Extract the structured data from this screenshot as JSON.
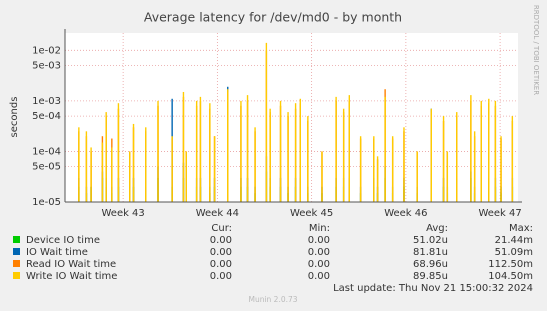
{
  "chart_data": {
    "type": "spike",
    "title": "Average latency for /dev/md0 - by month",
    "y_label": "seconds",
    "side_text": "RRDTOOL / TOBI OETIKER",
    "log_y": true,
    "grid": true,
    "ylim": [
      1e-05,
      0.022
    ],
    "yticks": [
      {
        "value": 1e-05,
        "label": "1e-05"
      },
      {
        "value": 5e-05,
        "label": "5e-05"
      },
      {
        "value": 0.0001,
        "label": "1e-04"
      },
      {
        "value": 0.0005,
        "label": "5e-04"
      },
      {
        "value": 0.001,
        "label": "1e-03"
      },
      {
        "value": 0.005,
        "label": "5e-03"
      },
      {
        "value": 0.01,
        "label": "1e-02"
      }
    ],
    "xlim": [
      42.383,
      47.19
    ],
    "xticks": [
      {
        "value": 43,
        "label": "Week 43"
      },
      {
        "value": 44,
        "label": "Week 44"
      },
      {
        "value": 45,
        "label": "Week 45"
      },
      {
        "value": 46,
        "label": "Week 46"
      },
      {
        "value": 47,
        "label": "Week 47"
      }
    ],
    "x": [
      42.53,
      42.61,
      42.66,
      42.78,
      42.82,
      42.88,
      42.95,
      43.07,
      43.11,
      43.24,
      43.37,
      43.52,
      43.64,
      43.67,
      43.78,
      43.82,
      43.92,
      43.97,
      44.11,
      44.25,
      44.32,
      44.4,
      44.52,
      44.56,
      44.67,
      44.75,
      44.83,
      44.88,
      44.96,
      45.11,
      45.26,
      45.34,
      45.4,
      45.52,
      45.66,
      45.7,
      45.78,
      45.86,
      45.98,
      46.12,
      46.27,
      46.4,
      46.44,
      46.54,
      46.69,
      46.73,
      46.8,
      46.88,
      46.95,
      47.01,
      47.13
    ],
    "legend_headers": [
      "Cur:",
      "Min:",
      "Avg:",
      "Max:"
    ],
    "series": [
      {
        "name": "Device IO time",
        "color": "#00cc00",
        "cur": "0.00",
        "min": "0.00",
        "avg": "51.02u",
        "max": "21.44m",
        "values": [
          2e-05,
          1.5e-05,
          2e-05,
          3e-05,
          2e-05,
          1.5e-05,
          2e-05,
          1.5e-05,
          2e-05,
          1.5e-05,
          3e-05,
          2e-05,
          3e-05,
          1.5e-05,
          2e-05,
          2e-05,
          1.5e-05,
          2e-05,
          3e-05,
          2e-05,
          2e-05,
          1.5e-05,
          4e-05,
          2e-05,
          2e-05,
          1.5e-05,
          2e-05,
          2e-05,
          1.5e-05,
          1.5e-05,
          2e-05,
          2e-05,
          2e-05,
          1.5e-05,
          2e-05,
          1.5e-05,
          3e-05,
          1.5e-05,
          2e-05,
          1.5e-05,
          2e-05,
          2e-05,
          1.5e-05,
          2e-05,
          3e-05,
          1.5e-05,
          2e-05,
          2e-05,
          2e-05,
          1.5e-05,
          2e-05
        ]
      },
      {
        "name": "IO Wait time",
        "color": "#0066b3",
        "cur": "0.00",
        "min": "0.00",
        "avg": "81.81u",
        "max": "51.09m",
        "values": [
          3e-05,
          2e-05,
          2e-05,
          4e-05,
          3e-05,
          2e-05,
          3e-05,
          2e-05,
          3e-05,
          2e-05,
          5e-05,
          0.0011,
          6e-05,
          2e-05,
          3e-05,
          3e-05,
          2e-05,
          3e-05,
          0.0019,
          3e-05,
          3e-05,
          2e-05,
          8e-05,
          3e-05,
          3e-05,
          2e-05,
          3e-05,
          3e-05,
          2e-05,
          2e-05,
          3e-05,
          3e-05,
          3e-05,
          2e-05,
          3e-05,
          2e-05,
          5e-05,
          2e-05,
          3e-05,
          2e-05,
          0.0007,
          3e-05,
          2e-05,
          3e-05,
          4e-05,
          2e-05,
          3e-05,
          3e-05,
          3e-05,
          2e-05,
          3e-05
        ]
      },
      {
        "name": "Read IO Wait time",
        "color": "#ff8000",
        "cur": "0.00",
        "min": "0.00",
        "avg": "68.96u",
        "max": "112.50m",
        "values": [
          0.00025,
          0.0002,
          0.0001,
          0.0002,
          0.0005,
          0.00018,
          0.0007,
          0.0001,
          0.0003,
          0.00025,
          0.0008,
          0.00018,
          0.0012,
          0.0001,
          0.0008,
          0.001,
          0.0007,
          0.0002,
          0.0015,
          0.0008,
          0.001,
          0.00025,
          0.01,
          0.0006,
          0.0008,
          0.0005,
          0.0007,
          0.0009,
          0.0004,
          0.0001,
          0.001,
          0.0006,
          0.001,
          0.00018,
          0.00018,
          7e-05,
          0.0017,
          0.00018,
          0.00025,
          0.0001,
          0.0006,
          0.0004,
          0.0001,
          0.0005,
          0.001,
          0.0002,
          0.0008,
          0.0009,
          0.0008,
          0.00018,
          0.0004
        ]
      },
      {
        "name": "Write IO Wait time",
        "color": "#ffcc00",
        "cur": "0.00",
        "min": "0.00",
        "avg": "89.85u",
        "max": "104.50m",
        "values": [
          0.0003,
          0.00025,
          0.00012,
          0.00015,
          0.0006,
          0.00012,
          0.0009,
          0.0001,
          0.00035,
          0.0003,
          0.001,
          0.0002,
          0.0015,
          0.0001,
          0.001,
          0.0012,
          0.0009,
          0.0002,
          0.0017,
          0.001,
          0.0013,
          0.0003,
          0.014,
          0.0007,
          0.001,
          0.0006,
          0.0009,
          0.0011,
          0.0005,
          0.0001,
          0.0012,
          0.0007,
          0.0013,
          0.0002,
          0.0002,
          8e-05,
          0.0012,
          0.0002,
          0.0003,
          0.0001,
          0.0007,
          0.0005,
          0.0001,
          0.0006,
          0.0013,
          0.00025,
          0.001,
          0.0011,
          0.001,
          0.0002,
          0.0005
        ]
      }
    ],
    "last_update": "Last update: Thu Nov 21 15:00:32 2024",
    "footer": "Munin 2.0.73"
  }
}
